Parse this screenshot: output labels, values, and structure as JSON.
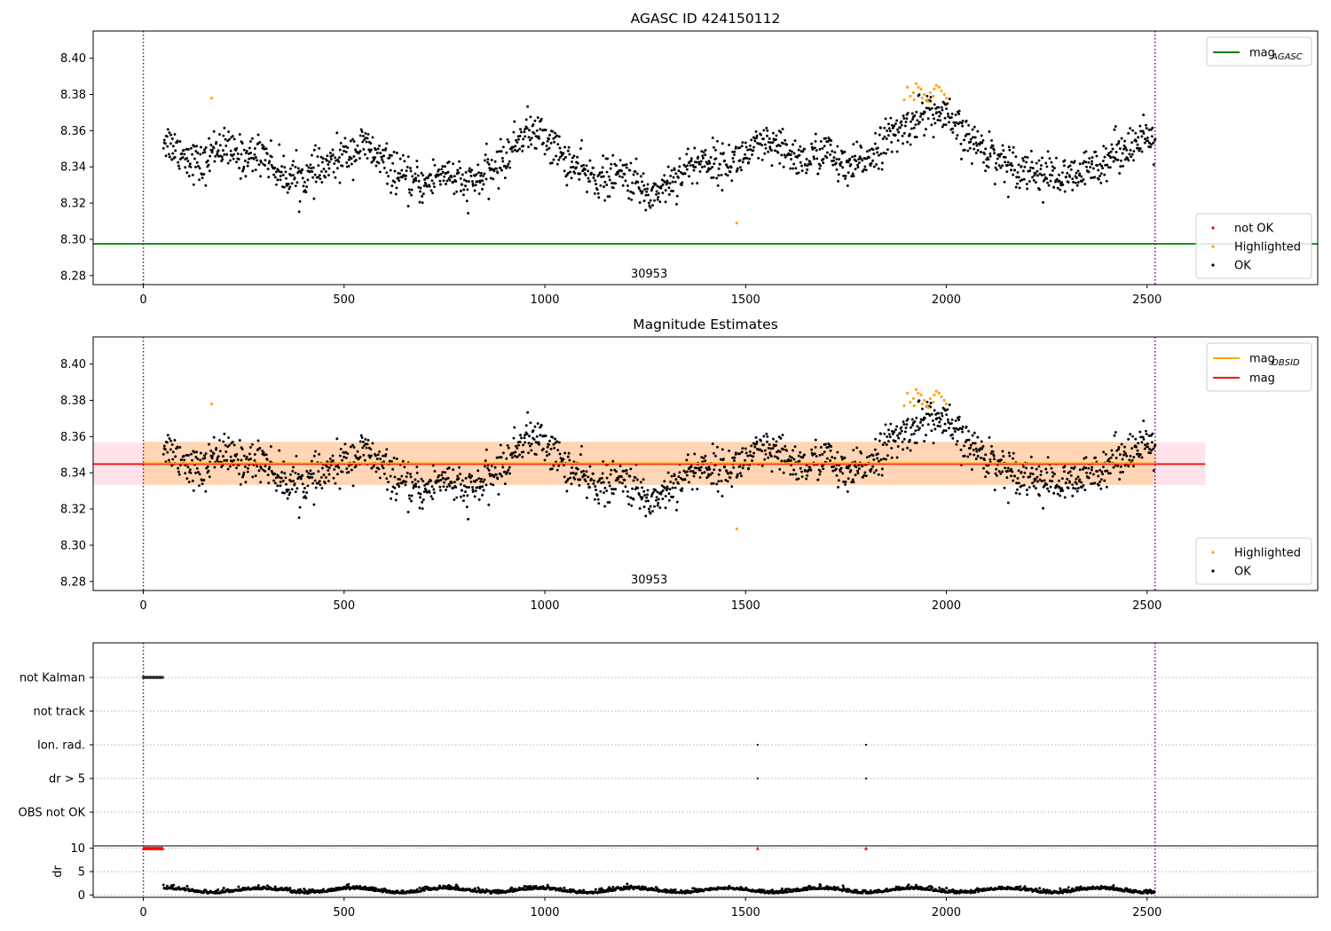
{
  "chart_data": [
    {
      "type": "scatter",
      "title": "AGASC ID 424150112",
      "xlim": [
        -125,
        2925
      ],
      "ylim": [
        8.275,
        8.415
      ],
      "x_ticks": [
        0,
        500,
        1000,
        1500,
        2000,
        2500
      ],
      "x_tick_labels": [
        "0",
        "500",
        "1000",
        "1500",
        "2000",
        "2500"
      ],
      "y_ticks": [
        8.28,
        8.3,
        8.32,
        8.34,
        8.36,
        8.38,
        8.4
      ],
      "y_tick_labels": [
        "8.28",
        "8.30",
        "8.32",
        "8.34",
        "8.36",
        "8.38",
        "8.40"
      ],
      "obs_boundaries": [
        0,
        2520
      ],
      "obs_label": "30953",
      "obs_label_x": 1260,
      "mag_agasc": 8.2975,
      "legend_lines": [
        {
          "label": "mag",
          "sub": "AGASC",
          "color": "#008000"
        }
      ],
      "legend_points": [
        {
          "label": "not OK",
          "color": "#ff0000"
        },
        {
          "label": "Highlighted",
          "color": "#ffa500"
        },
        {
          "label": "OK",
          "color": "#000000"
        }
      ],
      "ok_profile": {
        "x": [
          50,
          100,
          150,
          180,
          250,
          300,
          340,
          400,
          450,
          500,
          550,
          600,
          650,
          700,
          750,
          800,
          850,
          900,
          950,
          1000,
          1050,
          1100,
          1150,
          1200,
          1260,
          1300,
          1350,
          1400,
          1450,
          1500,
          1550,
          1600,
          1650,
          1700,
          1750,
          1800,
          1850,
          1900,
          1950,
          2000,
          2050,
          2100,
          2150,
          2200,
          2250,
          2300,
          2330,
          2400,
          2450,
          2520
        ],
        "y": [
          8.356,
          8.347,
          8.34,
          8.352,
          8.345,
          8.348,
          8.336,
          8.334,
          8.339,
          8.346,
          8.352,
          8.342,
          8.333,
          8.33,
          8.338,
          8.329,
          8.335,
          8.344,
          8.36,
          8.357,
          8.344,
          8.336,
          8.333,
          8.336,
          8.324,
          8.33,
          8.339,
          8.344,
          8.341,
          8.347,
          8.352,
          8.348,
          8.343,
          8.35,
          8.337,
          8.345,
          8.355,
          8.362,
          8.371,
          8.367,
          8.356,
          8.349,
          8.342,
          8.339,
          8.336,
          8.333,
          8.335,
          8.345,
          8.352,
          8.355
        ],
        "noise": 0.0055,
        "n_points": 1700
      },
      "highlighted_points": [
        [
          170,
          8.378
        ],
        [
          1478,
          8.309
        ],
        [
          1895,
          8.377
        ],
        [
          1903,
          8.384
        ],
        [
          1910,
          8.379
        ],
        [
          1918,
          8.381
        ],
        [
          1925,
          8.386
        ],
        [
          1930,
          8.384
        ],
        [
          1937,
          8.383
        ],
        [
          1945,
          8.38
        ],
        [
          1952,
          8.377
        ],
        [
          1960,
          8.381
        ],
        [
          1968,
          8.379
        ],
        [
          1975,
          8.385
        ],
        [
          1982,
          8.384
        ],
        [
          1988,
          8.382
        ],
        [
          1995,
          8.38
        ],
        [
          2000,
          8.378
        ],
        [
          1940,
          8.378
        ],
        [
          1920,
          8.377
        ],
        [
          1970,
          8.383
        ],
        [
          1955,
          8.376
        ]
      ]
    },
    {
      "type": "scatter",
      "title": "Magnitude Estimates",
      "xlim": [
        -125,
        2925
      ],
      "ylim": [
        8.275,
        8.415
      ],
      "x_ticks": [
        0,
        500,
        1000,
        1500,
        2000,
        2500
      ],
      "x_tick_labels": [
        "0",
        "500",
        "1000",
        "1500",
        "2000",
        "2500"
      ],
      "y_ticks": [
        8.28,
        8.3,
        8.32,
        8.34,
        8.36,
        8.38,
        8.4
      ],
      "y_tick_labels": [
        "8.28",
        "8.30",
        "8.32",
        "8.34",
        "8.36",
        "8.38",
        "8.40"
      ],
      "obs_boundaries": [
        0,
        2520
      ],
      "obs_label": "30953",
      "obs_label_x": 1260,
      "mag": 8.3448,
      "mag_band": [
        8.3333,
        8.3568
      ],
      "mag_band_x": [
        -125,
        2645
      ],
      "mag_obsid": 8.3453,
      "mag_obsid_band": [
        8.3333,
        8.3573
      ],
      "mag_obsid_x": [
        0,
        2520
      ],
      "legend_lines": [
        {
          "label": "mag",
          "sub": "OBSID",
          "color": "#ffa500"
        },
        {
          "label": "mag",
          "sub": "",
          "color": "#ff0000"
        }
      ],
      "legend_points": [
        {
          "label": "Highlighted",
          "color": "#ffa500"
        },
        {
          "label": "OK",
          "color": "#000000"
        }
      ]
    },
    {
      "type": "scatter",
      "xlim": [
        -125,
        2925
      ],
      "x_ticks": [
        0,
        500,
        1000,
        1500,
        2000,
        2500
      ],
      "x_tick_labels": [
        "0",
        "500",
        "1000",
        "1500",
        "2000",
        "2500"
      ],
      "flag_labels": [
        "not Kalman",
        "not track",
        "Ion. rad.",
        "dr > 5",
        "OBS not OK"
      ],
      "flag_points": {
        "not Kalman": {
          "x_range": [
            0,
            48
          ],
          "step": 3
        },
        "not track": [],
        "Ion. rad.": [
          1530,
          1800
        ],
        "dr > 5": [
          1530,
          1800
        ],
        "OBS not OK": []
      },
      "dr_ylabel": "dr",
      "dr_ylim": [
        -0.5,
        10.5
      ],
      "dr_ticks": [
        0,
        5,
        10
      ],
      "dr_tick_labels": [
        "0",
        "5",
        "10"
      ],
      "dr_clipped": {
        "x_range": [
          0,
          48
        ],
        "extra": [
          1530,
          1800
        ],
        "value": 10
      },
      "dr_start": 50,
      "dr_end": 2520
    }
  ]
}
